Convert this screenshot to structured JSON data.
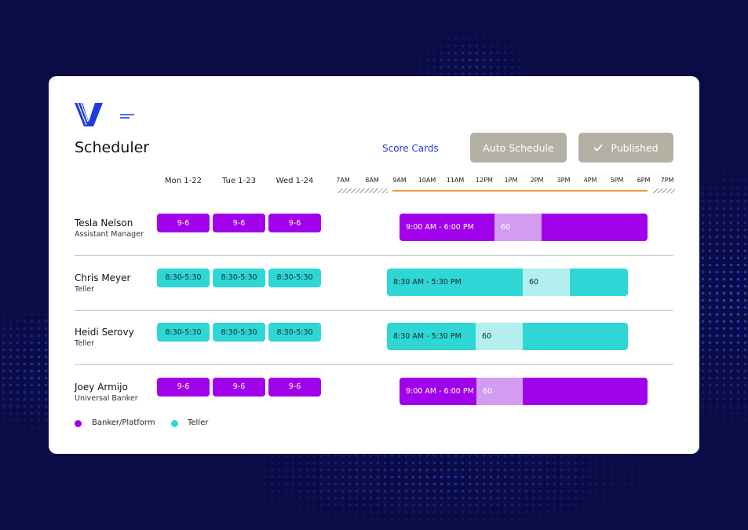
{
  "header": {
    "title": "Scheduler",
    "link": "Score Cards",
    "buttons": [
      "Auto Schedule",
      "Published"
    ]
  },
  "days": [
    "Mon 1-22",
    "Tue 1-23",
    "Wed 1-24"
  ],
  "hours": [
    "7AM",
    "8AM",
    "9AM",
    "10AM",
    "11AM",
    "12PM",
    "1PM",
    "2PM",
    "3PM",
    "4PM",
    "5PM",
    "6PM",
    "7PM"
  ],
  "employees": [
    {
      "name": "Tesla Nelson",
      "role": "Assistant Manager",
      "group": "Banker/Platform",
      "shifts": [
        "9-6",
        "9-6",
        "9-6"
      ],
      "timeline": "9:00 AM - 6:00 PM",
      "break": "60"
    },
    {
      "name": "Chris Meyer",
      "role": "Teller",
      "group": "Teller",
      "shifts": [
        "8:30-5:30",
        "8:30-5:30",
        "8:30-5:30"
      ],
      "timeline": "8:30 AM - 5:30 PM",
      "break": "60"
    },
    {
      "name": "Heidi Serovy",
      "role": "Teller",
      "group": "Teller",
      "shifts": [
        "8:30-5:30",
        "8:30-5:30",
        "8:30-5:30"
      ],
      "timeline": "8:30 AM - 5:30 PM",
      "break": "60"
    },
    {
      "name": "Joey Armijo",
      "role": "Universal Banker",
      "group": "Banker/Platform",
      "shifts": [
        "9-6",
        "9-6",
        "9-6"
      ],
      "timeline": "9:00 AM - 6:00 PM",
      "break": "60"
    }
  ],
  "legend": [
    "Banker/Platform",
    "Teller"
  ]
}
